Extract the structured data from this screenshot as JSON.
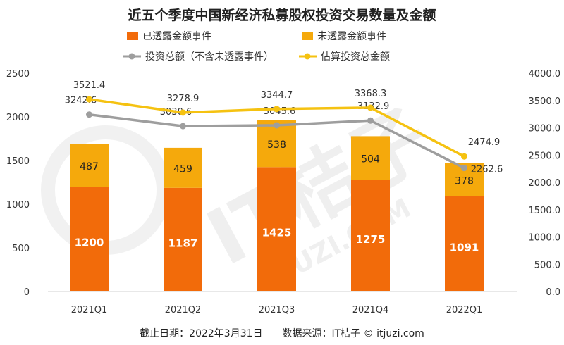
{
  "chart_data": {
    "type": "bar",
    "title": "近五个季度中国新经济私募股权投资交易数量及金额",
    "categories": [
      "2021Q1",
      "2021Q2",
      "2021Q3",
      "2021Q4",
      "2022Q1"
    ],
    "series": [
      {
        "name": "已透露金额事件",
        "kind": "bar",
        "axis": "left",
        "values": [
          1200,
          1187,
          1425,
          1275,
          1091
        ],
        "color": "#f26b0a"
      },
      {
        "name": "未透露金额事件",
        "kind": "bar",
        "axis": "left",
        "values": [
          487,
          459,
          538,
          504,
          378
        ],
        "color": "#f5a90c"
      },
      {
        "name": "投资总额（不含未透露事件）",
        "kind": "line",
        "axis": "right",
        "values": [
          3242.6,
          3030.6,
          3045.6,
          3132.9,
          2262.6
        ],
        "labels": [
          "3242.6",
          "3030.6",
          "3045.6",
          "3132.9",
          "2262.6"
        ],
        "color": "#9e9e9e"
      },
      {
        "name": "估算投资总金额",
        "kind": "line",
        "axis": "right",
        "values": [
          3521.4,
          3278.9,
          3344.7,
          3368.3,
          2474.9
        ],
        "labels": [
          "3521.4",
          "3278.9",
          "3344.7",
          "3368.3",
          "2474.9"
        ],
        "color": "#f5c211"
      }
    ],
    "y_left": {
      "range": [
        0,
        2500
      ],
      "ticks": [
        "0",
        "500",
        "1000",
        "1500",
        "2000",
        "2500"
      ]
    },
    "y_right": {
      "range": [
        0,
        4000
      ],
      "ticks": [
        "0.0",
        "500.0",
        "1000.0",
        "1500.0",
        "2000.0",
        "2500.0",
        "3000.0",
        "3500.0",
        "4000.0"
      ]
    },
    "grid": false,
    "legend_position": "top"
  },
  "footer": "截止日期：2022年3月31日　　数据来源：IT桔子 © itjuzi.com",
  "watermark": {
    "text": "IT桔子",
    "subtext": "ITJUZI.COM"
  }
}
